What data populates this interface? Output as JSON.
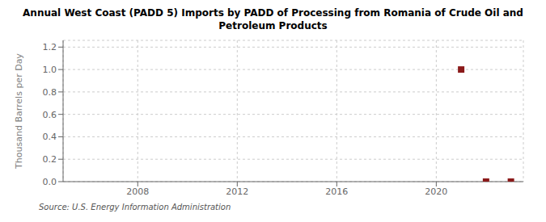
{
  "chart_data": {
    "type": "scatter",
    "title": "Annual West Coast (PADD 5) Imports by PADD of Processing from Romania of Crude Oil and\nPetroleum Products",
    "y_label": "Thousand Barrels per Day",
    "annotations": [
      "Source: U.S. Energy Information Administration"
    ],
    "x": [
      2021,
      2022,
      2023
    ],
    "values": [
      1.0,
      0.0,
      0.0
    ],
    "color": "#8b1a1a",
    "marker": "square",
    "xlim": [
      2005,
      2023.5
    ],
    "ylim": [
      0.0,
      1.26
    ],
    "xticks": [
      2008,
      2012,
      2016,
      2020
    ],
    "yticks": [
      {
        "value": 0.0,
        "label": "0.0"
      },
      0.2,
      0.4,
      0.6,
      0.8,
      {
        "value": 1.0,
        "label": "1.0"
      },
      1.2
    ],
    "grid": true
  }
}
